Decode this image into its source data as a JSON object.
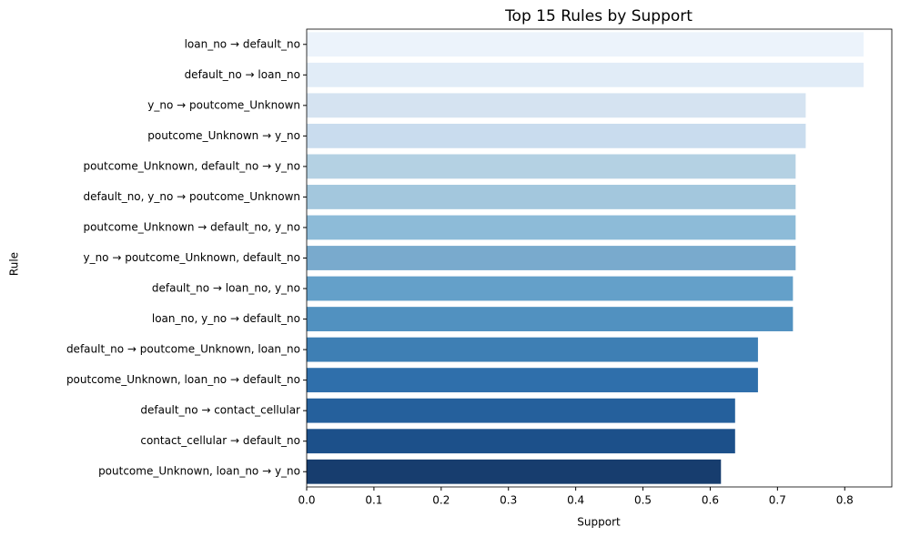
{
  "chart_data": {
    "type": "barh",
    "title": "Top 15 Rules by Support",
    "xlabel": "Support",
    "ylabel": "Rule",
    "categories": [
      "loan_no → default_no",
      "default_no → loan_no",
      "y_no → poutcome_Unknown",
      "poutcome_Unknown → y_no",
      "poutcome_Unknown, default_no → y_no",
      "default_no, y_no → poutcome_Unknown",
      "poutcome_Unknown → default_no, y_no",
      "y_no → poutcome_Unknown, default_no",
      "default_no → loan_no, y_no",
      "loan_no, y_no → default_no",
      "default_no → poutcome_Unknown, loan_no",
      "poutcome_Unknown, loan_no → default_no",
      "default_no → contact_cellular",
      "contact_cellular → default_no",
      "poutcome_Unknown, loan_no → y_no"
    ],
    "values": [
      0.828,
      0.828,
      0.742,
      0.742,
      0.727,
      0.727,
      0.727,
      0.727,
      0.723,
      0.723,
      0.671,
      0.671,
      0.637,
      0.637,
      0.616
    ],
    "colors": [
      "#ecf3fb",
      "#e1ecf7",
      "#d5e3f1",
      "#c9dcee",
      "#b4d1e3",
      "#a3c7dd",
      "#8dbbd8",
      "#79aacd",
      "#64a0c9",
      "#5191c0",
      "#3e7fb4",
      "#2f6fab",
      "#25609c",
      "#1c508a",
      "#173d6e"
    ],
    "xlim": [
      0,
      0.87
    ],
    "xticks": [
      {
        "value": 0,
        "label": "0.0"
      },
      0.1,
      0.2,
      0.3,
      0.4,
      0.5,
      0.6,
      0.7,
      0.8
    ]
  }
}
